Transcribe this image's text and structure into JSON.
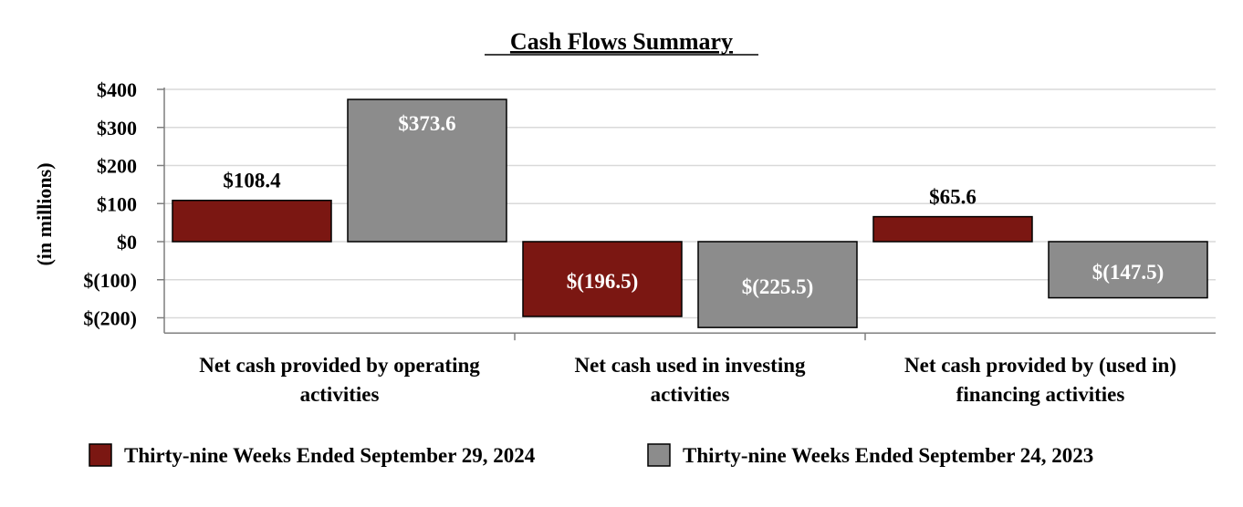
{
  "chart_data": {
    "type": "bar",
    "title": "Cash Flows Summary",
    "ylabel": "(in millions)",
    "xlabel": "",
    "ylim": [
      -240,
      400
    ],
    "yticks": [
      400,
      300,
      200,
      100,
      0,
      -100,
      -200
    ],
    "ytick_labels": [
      "$400",
      "$300",
      "$200",
      "$100",
      "$0",
      "$(100)",
      "$(200)"
    ],
    "grid": true,
    "legend_position": "bottom",
    "categories": [
      [
        "Net cash provided by operating",
        "activities"
      ],
      [
        "Net cash used in investing",
        "activities"
      ],
      [
        "Net cash provided by (used in)",
        "financing activities"
      ]
    ],
    "series": [
      {
        "name": "Thirty-nine Weeks Ended September 29, 2024",
        "color": "#7b1712",
        "values": [
          108.4,
          -196.5,
          65.6
        ],
        "labels": [
          "$108.4",
          "$(196.5)",
          "$65.6"
        ]
      },
      {
        "name": "Thirty-nine Weeks Ended September 24, 2023",
        "color": "#8c8c8c",
        "values": [
          373.6,
          -225.5,
          -147.5
        ],
        "labels": [
          "$373.6",
          "$(225.5)",
          "$(147.5)"
        ]
      }
    ]
  }
}
